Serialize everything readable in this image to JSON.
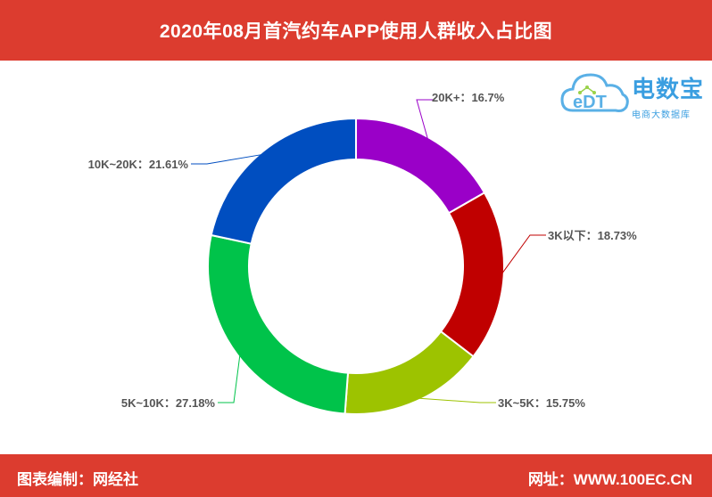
{
  "header": {
    "title": "2020年08月首汽约车APP使用人群收入占比图"
  },
  "footer": {
    "left": "图表编制：网经社",
    "right": "网址：WWW.100EC.CN"
  },
  "logo": {
    "brand": "电数宝",
    "sub": "电商大数据库",
    "mark": "eDT"
  },
  "chart_data": {
    "type": "pie",
    "donut": true,
    "title": "2020年08月首汽约车APP使用人群收入占比图",
    "slices": [
      {
        "label": "20K+",
        "value": 16.7,
        "display": "20K+：16.7%",
        "color": "#9a00c8"
      },
      {
        "label": "3K以下",
        "value": 18.73,
        "display": "3K以下：18.73%",
        "color": "#c00000"
      },
      {
        "label": "3K~5K",
        "value": 15.75,
        "display": "3K~5K：15.75%",
        "color": "#9dc300"
      },
      {
        "label": "5K~10K",
        "value": 27.18,
        "display": "5K~10K：27.18%",
        "color": "#00c34a"
      },
      {
        "label": "10K~20K",
        "value": 21.61,
        "display": "10K~20K：21.61%",
        "color": "#004ec0"
      }
    ]
  }
}
